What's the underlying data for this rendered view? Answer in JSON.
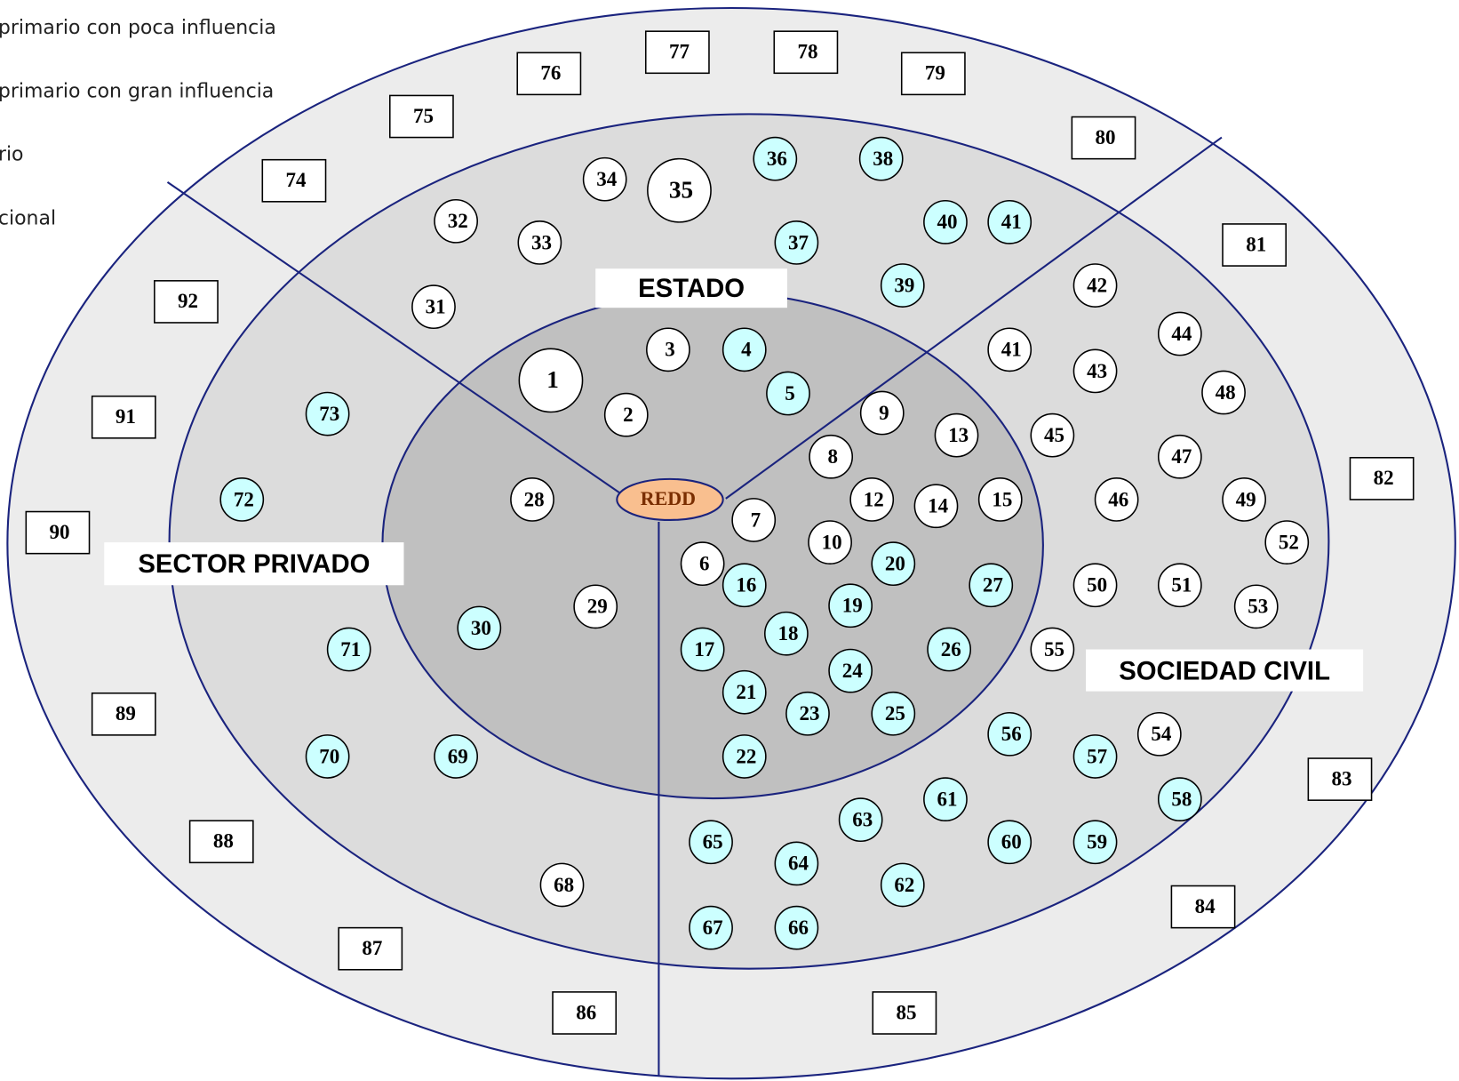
{
  "legend": [
    "primario con poca influencia",
    "primario con gran influencia",
    "rio",
    "cional"
  ],
  "sectors": {
    "estado": "ESTADO",
    "privado": "SECTOR PRIVADO",
    "civil": "SOCIEDAD CIVIL"
  },
  "center": "REDD",
  "nodes": [
    "1",
    "2",
    "3",
    "4",
    "5",
    "6",
    "7",
    "8",
    "9",
    "10",
    "12",
    "13",
    "14",
    "15",
    "16",
    "17",
    "18",
    "19",
    "20",
    "21",
    "22",
    "23",
    "24",
    "25",
    "26",
    "27",
    "28",
    "29",
    "30",
    "31",
    "32",
    "33",
    "34",
    "35",
    "36",
    "37",
    "38",
    "39",
    "40",
    "41",
    "42",
    "41",
    "43",
    "44",
    "45",
    "46",
    "47",
    "48",
    "49",
    "50",
    "51",
    "52",
    "53",
    "54",
    "55",
    "56",
    "57",
    "58",
    "59",
    "60",
    "61",
    "62",
    "63",
    "64",
    "65",
    "66",
    "67",
    "68",
    "69",
    "70",
    "71",
    "72",
    "73",
    "74",
    "75",
    "76",
    "77",
    "78",
    "79",
    "80",
    "81",
    "82",
    "83",
    "84",
    "85",
    "86",
    "87",
    "88",
    "89",
    "90",
    "91",
    "92"
  ]
}
